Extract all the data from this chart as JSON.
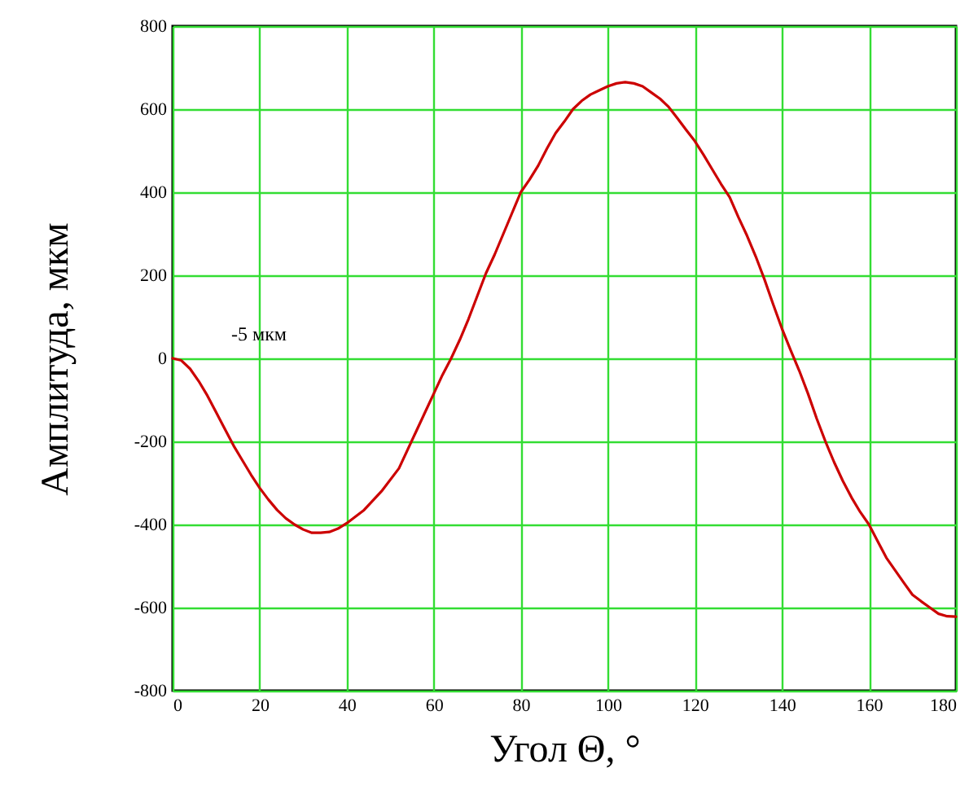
{
  "chart_data": {
    "type": "line",
    "xlabel": "Угол Θ, °",
    "ylabel": "Амплитуда, мкм",
    "x": [
      0,
      2,
      4,
      6,
      8,
      10,
      12,
      14,
      16,
      18,
      20,
      22,
      24,
      26,
      28,
      30,
      32,
      34,
      36,
      38,
      40,
      44,
      48,
      52,
      56,
      58,
      60,
      62,
      64,
      66,
      68,
      70,
      72,
      74,
      76,
      78,
      80,
      82,
      84,
      86,
      88,
      90,
      92,
      94,
      96,
      98,
      100,
      102,
      104,
      106,
      108,
      110,
      112,
      114,
      116,
      118,
      120,
      122,
      124,
      126,
      128,
      130,
      132,
      134,
      136,
      138,
      140,
      142,
      144,
      146,
      148,
      150,
      152,
      154,
      156,
      158,
      160,
      162,
      164,
      166,
      168,
      170,
      172,
      174,
      176,
      178,
      180
    ],
    "series": [
      {
        "color": "#cc0000",
        "values": [
          0,
          -5,
          -25,
          -55,
          -90,
          -130,
          -170,
          -210,
          -245,
          -280,
          -312,
          -340,
          -365,
          -385,
          -400,
          -412,
          -420,
          -420,
          -418,
          -410,
          -397,
          -365,
          -320,
          -265,
          -175,
          -130,
          -85,
          -40,
          0,
          45,
          95,
          150,
          205,
          250,
          300,
          350,
          400,
          430,
          464,
          505,
          542,
          570,
          600,
          620,
          635,
          645,
          655,
          662,
          665,
          662,
          655,
          640,
          625,
          605,
          578,
          550,
          523,
          490,
          455,
          420,
          388,
          340,
          295,
          245,
          190,
          130,
          72,
          20,
          -30,
          -85,
          -145,
          -200,
          -250,
          -295,
          -335,
          -370,
          -400,
          -440,
          -480,
          -510,
          -540,
          -569,
          -585,
          -600,
          -615,
          -621,
          -622
        ]
      }
    ],
    "xlim": [
      0,
      180
    ],
    "xticks": [
      0,
      20,
      40,
      60,
      80,
      100,
      120,
      140,
      160,
      180
    ],
    "ylim": [
      -800,
      800
    ],
    "yticks": [
      -800,
      -600,
      -400,
      -200,
      0,
      200,
      400,
      600,
      800
    ],
    "grid": true,
    "line_style": "solid",
    "marker": "none",
    "annotations": [
      "-5 мкм"
    ]
  }
}
